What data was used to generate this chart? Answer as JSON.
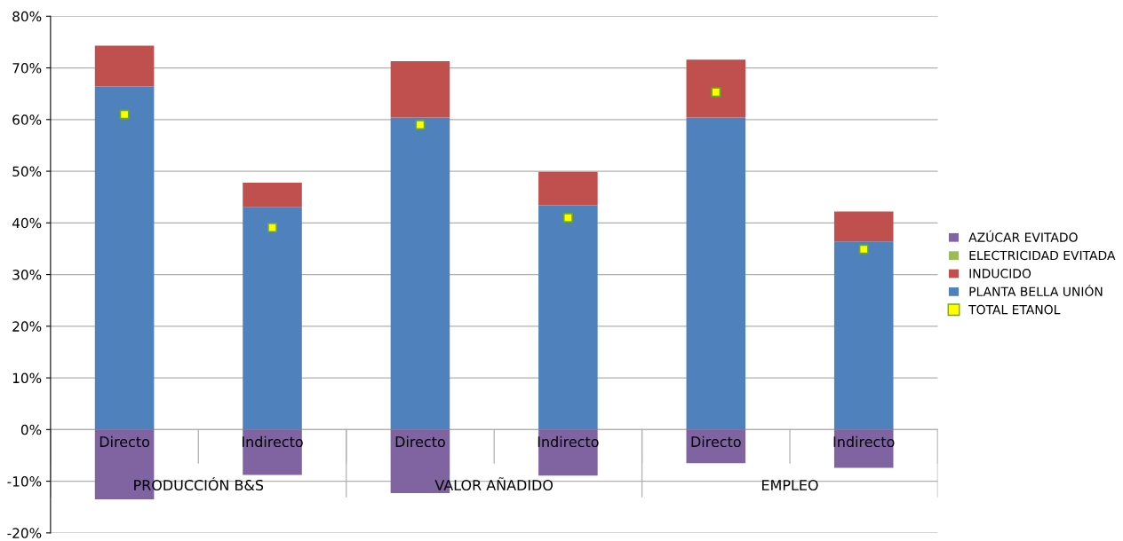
{
  "chart_data": {
    "type": "bar",
    "stacked": true,
    "categories": [
      "Directo",
      "Indirecto",
      "Directo",
      "Indirecto",
      "Directo",
      "Indirecto"
    ],
    "annotations": [
      "PRODUCCIÓN B&S",
      "VALOR AÑADIDO",
      "EMPLEO"
    ],
    "series": [
      {
        "name": "PLANTA BELLA UNIÓN",
        "color": "#4f81bd",
        "values": [
          66.4,
          43.1,
          60.4,
          43.4,
          60.4,
          36.4
        ]
      },
      {
        "name": "INDUCIDO",
        "color": "#c0504d",
        "values": [
          7.9,
          4.7,
          10.9,
          6.5,
          11.2,
          5.8
        ]
      },
      {
        "name": "ELECTRICIDAD EVITADA",
        "color": "#9bbb59",
        "values": [
          0,
          0,
          0,
          0,
          0,
          0
        ]
      },
      {
        "name": "AZÚCAR EVITADO",
        "color": "#8064a2",
        "values": [
          -13.5,
          -8.8,
          -12.3,
          -8.9,
          -6.5,
          -7.4
        ]
      },
      {
        "name": "TOTAL ETANOL",
        "type": "scatter",
        "color": "#ffff00",
        "marker": "square",
        "values": [
          61.0,
          39.1,
          59.0,
          41.0,
          65.3,
          34.9
        ]
      }
    ],
    "ylim": [
      -20,
      80
    ],
    "yticks": [
      {
        "value": -20,
        "label": "-20%"
      },
      {
        "value": -10,
        "label": "-10%"
      },
      {
        "value": 0,
        "label": "0%"
      },
      {
        "value": 10,
        "label": "10%"
      },
      {
        "value": 20,
        "label": "20%"
      },
      {
        "value": 30,
        "label": "30%"
      },
      {
        "value": 40,
        "label": "40%"
      },
      {
        "value": 50,
        "label": "50%"
      },
      {
        "value": 60,
        "label": "60%"
      },
      {
        "value": 70,
        "label": "70%"
      },
      {
        "value": 80,
        "label": "80%"
      }
    ],
    "grid": "y",
    "legend": "right"
  }
}
